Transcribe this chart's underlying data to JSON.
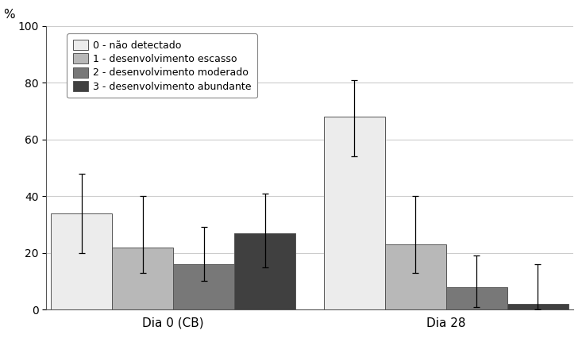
{
  "groups": [
    "Dia 0 (CB)",
    "Dia 28"
  ],
  "categories": [
    "0 - não detectado",
    "1 - desenvolvimento escasso",
    "2 - desenvolvimento moderado",
    "3 - desenvolvimento abundante"
  ],
  "values": [
    [
      34,
      22,
      16,
      27
    ],
    [
      68,
      23,
      8,
      2
    ]
  ],
  "errors_low": [
    [
      14,
      9,
      6,
      12
    ],
    [
      14,
      10,
      7,
      2
    ]
  ],
  "errors_high": [
    [
      14,
      18,
      13,
      14
    ],
    [
      13,
      17,
      11,
      14
    ]
  ],
  "bar_colors": [
    "#ececec",
    "#b8b8b8",
    "#787878",
    "#404040"
  ],
  "bar_edgecolor": "#555555",
  "ylim": [
    0,
    100
  ],
  "yticks": [
    0,
    20,
    40,
    60,
    80,
    100
  ],
  "legend_labels": [
    "0 - não detectado",
    "1 - desenvolvimento escasso",
    "2 - desenvolvimento moderado",
    "3 - desenvolvimento abundante"
  ],
  "background_color": "#ffffff",
  "bar_width": 0.13,
  "group_centers": [
    0.27,
    0.85
  ]
}
